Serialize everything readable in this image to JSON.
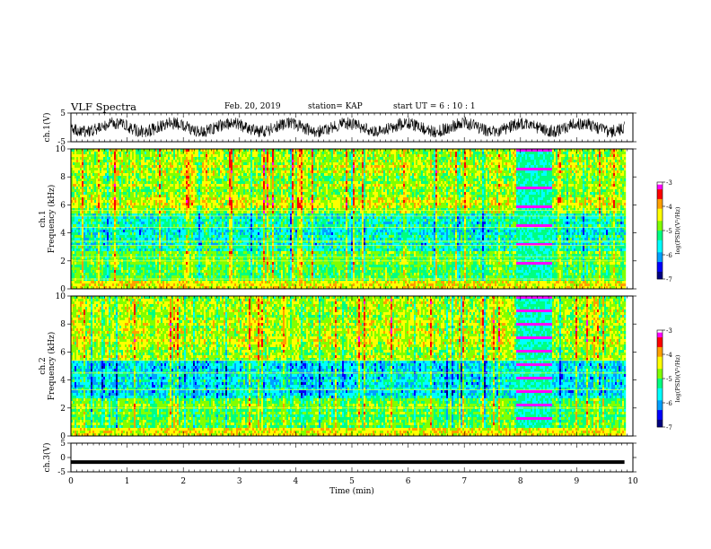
{
  "header": {
    "title": "VLF Spectra",
    "date": "Feb. 20, 2019",
    "station": "station= KAP",
    "start_ut": "start  UT =  6 : 10 : 1"
  },
  "chart_data": [
    {
      "type": "line",
      "name": "ch1-waveform",
      "ylabel": "ch.1(V)",
      "ylim": [
        -5,
        5
      ],
      "yticks": [
        "5",
        "-5"
      ],
      "xlim": [
        0,
        10
      ],
      "data_extent_x": [
        0,
        9.85
      ]
    },
    {
      "type": "heatmap",
      "name": "ch1-spectrogram",
      "ylabel": "ch.1\nFrequency (kHz)",
      "ylim": [
        0,
        10
      ],
      "yticks": [
        "0",
        "2",
        "4",
        "6",
        "8",
        "10"
      ],
      "xlim": [
        0,
        10
      ],
      "data_extent_x": [
        0,
        9.85
      ],
      "colorbar": {
        "label": "log(PSD)(V²/Hz)",
        "range": [
          -7,
          -3
        ],
        "ticks": [
          "-3",
          "-4",
          "-5",
          "-6",
          "-7"
        ]
      },
      "band_region_minutes": [
        7.9,
        8.55
      ]
    },
    {
      "type": "heatmap",
      "name": "ch2-spectrogram",
      "ylabel": "ch.2\nFrequency (kHz)",
      "ylim": [
        0,
        10
      ],
      "yticks": [
        "0",
        "2",
        "4",
        "6",
        "8",
        "10"
      ],
      "xlim": [
        0,
        10
      ],
      "data_extent_x": [
        0,
        9.85
      ],
      "colorbar": {
        "label": "log(PSD)(V²/Hz)",
        "range": [
          -7,
          -3
        ],
        "ticks": [
          "-3",
          "-4",
          "-5",
          "-6",
          "-7"
        ]
      },
      "band_region_minutes": [
        7.9,
        8.55
      ]
    },
    {
      "type": "line",
      "name": "ch3-waveform",
      "ylabel": "ch.3(V)",
      "ylim": [
        -5,
        5
      ],
      "yticks": [
        "5",
        "0",
        "-5"
      ],
      "xlim": [
        0,
        10
      ],
      "constant_value": -1.6,
      "xlabel": "Time (min)",
      "xticks": [
        "0",
        "1",
        "2",
        "3",
        "4",
        "5",
        "6",
        "7",
        "8",
        "9",
        "10"
      ]
    }
  ],
  "colors": {
    "scale": [
      "#000080",
      "#0000ff",
      "#00a0ff",
      "#00ffff",
      "#00ff80",
      "#80ff00",
      "#ffff00",
      "#ffa000",
      "#ff0000",
      "#ff00ff",
      "#ffffff"
    ]
  }
}
